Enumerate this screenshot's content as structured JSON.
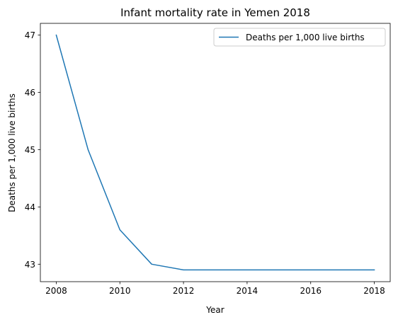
{
  "chart_data": {
    "type": "line",
    "title": "Infant mortality rate in Yemen 2018",
    "xlabel": "Year",
    "ylabel": "Deaths per 1,000 live births",
    "x": [
      2008,
      2009,
      2010,
      2011,
      2012,
      2013,
      2014,
      2015,
      2016,
      2017,
      2018
    ],
    "series": [
      {
        "name": "Deaths per 1,000 live births",
        "values": [
          47.0,
          45.0,
          43.6,
          43.0,
          42.9,
          42.9,
          42.9,
          42.9,
          42.9,
          42.9,
          42.9
        ],
        "color": "#1f77b4"
      }
    ],
    "xlim": [
      2007.5,
      2018.5
    ],
    "ylim": [
      42.695,
      47.205
    ],
    "xticks": [
      2008,
      2010,
      2012,
      2014,
      2016,
      2018
    ],
    "yticks": [
      43,
      44,
      45,
      46,
      47
    ],
    "grid": false,
    "legend_position": "top-right"
  }
}
